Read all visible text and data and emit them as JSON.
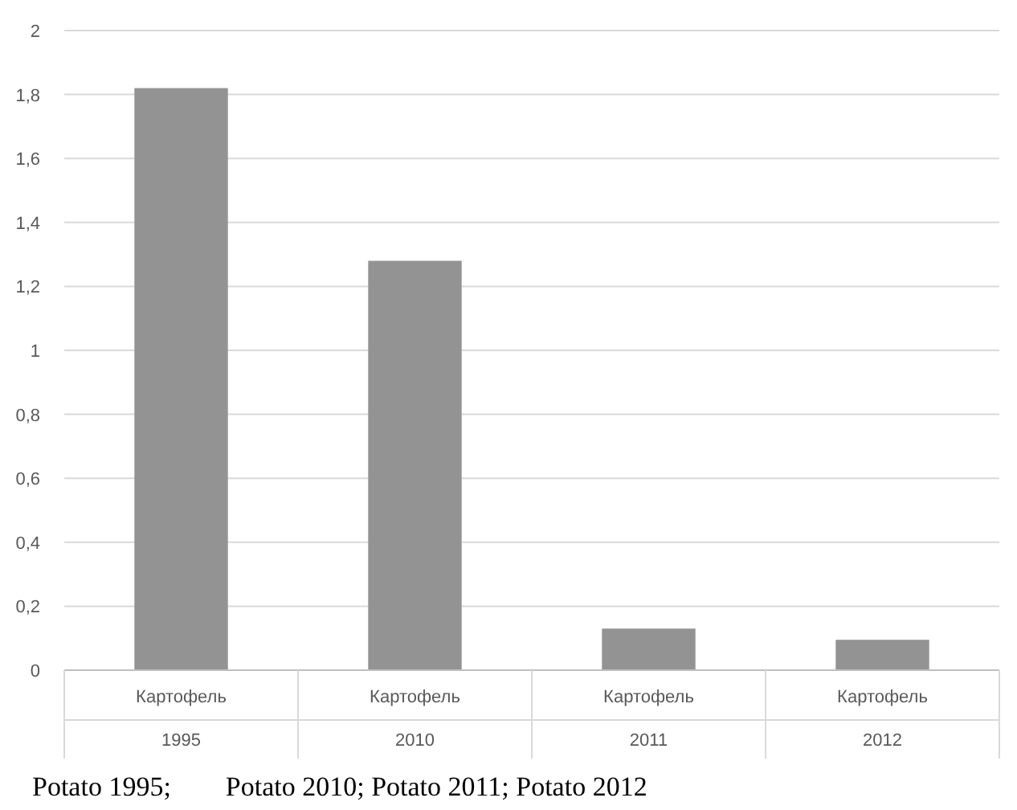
{
  "chart_data": {
    "type": "bar",
    "categories": [
      "Картофель 1995",
      "Картофель 2010",
      "Картофель 2011",
      "Картофель 2012"
    ],
    "values": [
      1.82,
      1.28,
      0.13,
      0.095
    ],
    "color": "#939393",
    "ylim": [
      0,
      2
    ],
    "yticks": [
      0,
      {
        "value": 0.2,
        "label": "0,2"
      },
      {
        "value": 0.4,
        "label": "0,4"
      },
      {
        "value": 0.6,
        "label": "0,6"
      },
      {
        "value": 0.8,
        "label": "0,8"
      },
      1,
      {
        "value": 1.2,
        "label": "1,2"
      },
      {
        "value": 1.4,
        "label": "1,4"
      },
      {
        "value": 1.6,
        "label": "1,6"
      },
      {
        "value": 1.8,
        "label": "1,8"
      },
      2
    ],
    "grid": "y",
    "annotations": [
      "Potato 1995;        Potato 2010; Potato 2011; Potato 2012"
    ]
  }
}
